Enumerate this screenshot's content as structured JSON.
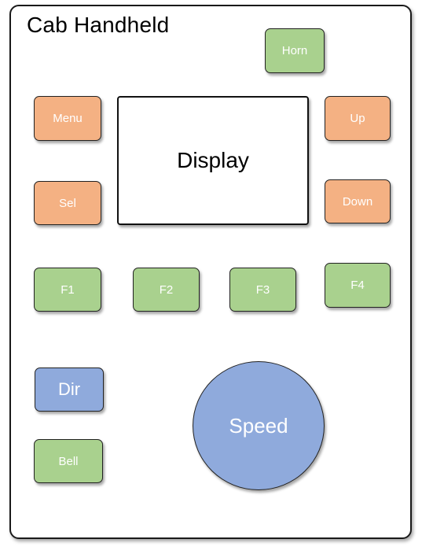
{
  "title": "Cab Handheld",
  "display_label": "Display",
  "buttons": {
    "horn": "Horn",
    "menu": "Menu",
    "up": "Up",
    "sel": "Sel",
    "down": "Down",
    "f1": "F1",
    "f2": "F2",
    "f3": "F3",
    "f4": "F4",
    "dir": "Dir",
    "bell": "Bell"
  },
  "speed_label": "Speed",
  "colors": {
    "orange": "#f4b183",
    "green": "#a9d18e",
    "blue": "#8faadc"
  }
}
